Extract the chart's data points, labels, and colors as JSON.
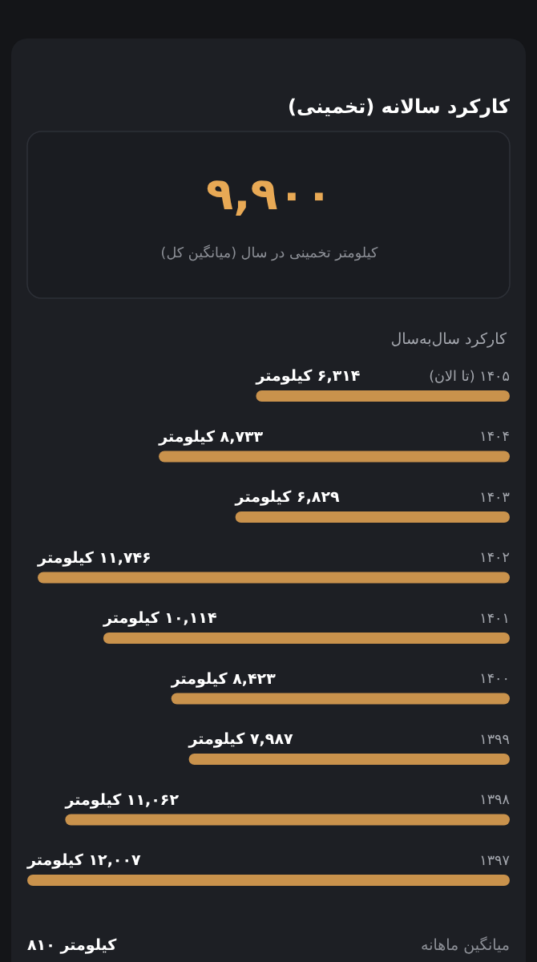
{
  "chart_data": {
    "type": "bar",
    "orientation": "horizontal",
    "title": "کارکرد سالانه (تخمینی)",
    "subtitle": "کارکرد سال‌به‌سال",
    "categories": [
      "۱۴۰۵ (تا الان)",
      "۱۴۰۴",
      "۱۴۰۳",
      "۱۴۰۲",
      "۱۴۰۱",
      "۱۴۰۰",
      "۱۳۹۹",
      "۱۳۹۸",
      "۱۳۹۷"
    ],
    "values": [
      6314,
      8733,
      6829,
      11746,
      10114,
      8423,
      7987,
      11062,
      12007
    ],
    "value_labels": [
      "۶,۳۱۴ کیلومتر",
      "۸,۷۳۳ کیلومتر",
      "۶,۸۲۹ کیلومتر",
      "۱۱,۷۴۶ کیلومتر",
      "۱۰,۱۱۴ کیلومتر",
      "۸,۴۲۳ کیلومتر",
      "۷,۹۸۷ کیلومتر",
      "۱۱,۰۶۲ کیلومتر",
      "۱۲,۰۰۷ کیلومتر"
    ],
    "color": "#c9924c",
    "annotations": [
      "۹,۹۰۰",
      "کیلومتر تخمینی در سال (میانگین کل)",
      "میانگین ماهانه",
      "کیلومتر ۸۱۰"
    ]
  }
}
